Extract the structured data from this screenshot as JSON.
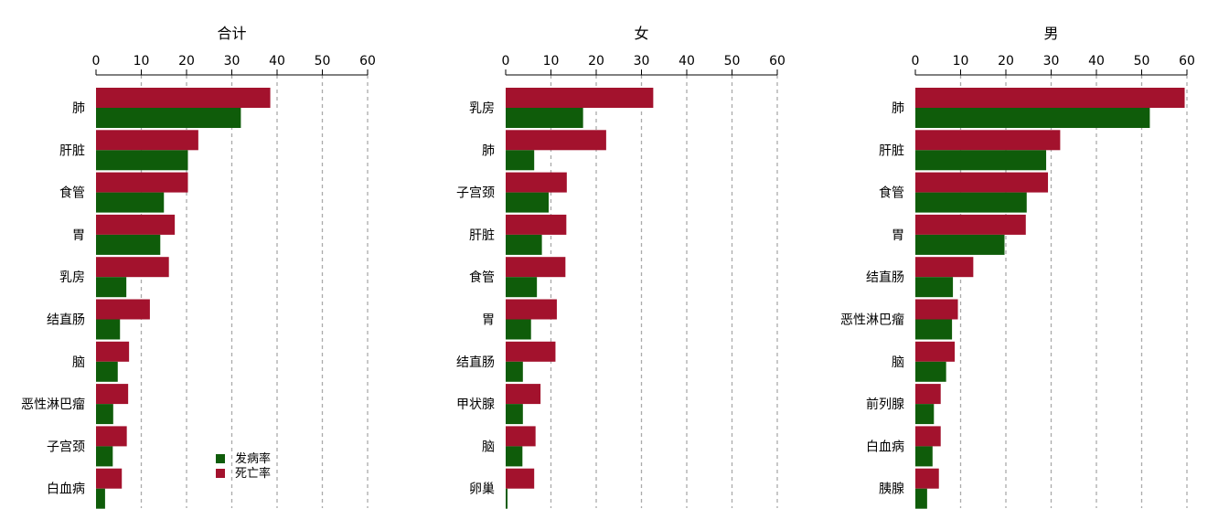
{
  "legend": {
    "incidence_label": "发病率",
    "mortality_label": "死亡率",
    "incidence_color": "#0f5c0a",
    "mortality_color": "#a3122d"
  },
  "chart_data": [
    {
      "type": "bar",
      "orientation": "horizontal",
      "title": "合计",
      "xlim": [
        0,
        60
      ],
      "xticks": [
        "0",
        "10",
        "20",
        "30",
        "40",
        "50",
        "60"
      ],
      "grid": "vertical-dashed",
      "legend_position": "bottom-right",
      "categories": [
        "肺",
        "肝脏",
        "食管",
        "胃",
        "乳房",
        "结直肠",
        "脑",
        "恶性淋巴瘤",
        "子宫颈",
        "白血病"
      ],
      "series": [
        {
          "name": "死亡率",
          "values": [
            38.5,
            22.6,
            20.3,
            17.4,
            16.1,
            11.9,
            7.3,
            7.1,
            6.8,
            5.7
          ]
        },
        {
          "name": "发病率",
          "values": [
            32.0,
            20.3,
            15.0,
            14.2,
            6.7,
            5.3,
            4.8,
            3.8,
            3.7,
            2.0
          ]
        }
      ]
    },
    {
      "type": "bar",
      "orientation": "horizontal",
      "title": "女",
      "xlim": [
        0,
        60
      ],
      "xticks": [
        "0",
        "10",
        "20",
        "30",
        "40",
        "50",
        "60"
      ],
      "grid": "vertical-dashed",
      "categories": [
        "乳房",
        "肺",
        "子宫颈",
        "肝脏",
        "食管",
        "胃",
        "结直肠",
        "甲状腺",
        "脑",
        "卵巢"
      ],
      "series": [
        {
          "name": "死亡率",
          "values": [
            32.6,
            22.2,
            13.5,
            13.4,
            13.2,
            11.3,
            11.0,
            7.7,
            6.6,
            6.3
          ]
        },
        {
          "name": "发病率",
          "values": [
            17.1,
            6.3,
            9.5,
            8.0,
            6.9,
            5.6,
            3.8,
            3.8,
            3.7,
            0.4
          ]
        }
      ]
    },
    {
      "type": "bar",
      "orientation": "horizontal",
      "title": "男",
      "xlim": [
        0,
        60
      ],
      "xticks": [
        "0",
        "10",
        "20",
        "30",
        "40",
        "50",
        "60"
      ],
      "grid": "vertical-dashed",
      "categories": [
        "肺",
        "肝脏",
        "食管",
        "胃",
        "结直肠",
        "恶性淋巴瘤",
        "脑",
        "前列腺",
        "白血病",
        "胰腺"
      ],
      "series": [
        {
          "name": "死亡率",
          "values": [
            59.5,
            32.0,
            29.3,
            24.4,
            12.8,
            9.4,
            8.7,
            5.6,
            5.6,
            5.2
          ]
        },
        {
          "name": "发病率",
          "values": [
            51.8,
            28.9,
            24.6,
            19.7,
            8.3,
            8.1,
            6.8,
            4.1,
            3.8,
            2.6
          ]
        }
      ]
    }
  ]
}
